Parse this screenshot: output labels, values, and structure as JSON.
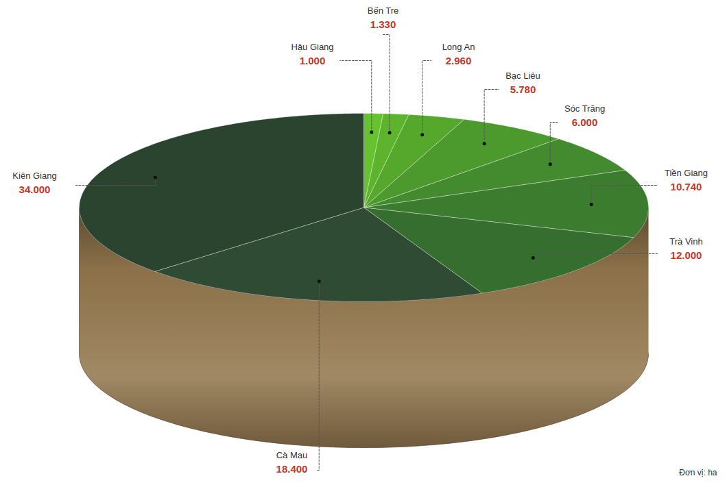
{
  "chart_data": {
    "type": "pie",
    "categories": [
      "Hậu Giang",
      "Bến Tre",
      "Long An",
      "Bạc Liêu",
      "Sóc Trăng",
      "Tiền Giang",
      "Trà Vinh",
      "Cà Mau",
      "Kiên Giang"
    ],
    "values": [
      1000,
      1330,
      2960,
      5780,
      6000,
      10740,
      12000,
      18400,
      34000
    ],
    "value_labels": [
      "1.000",
      "1.330",
      "2.960",
      "5.780",
      "6.000",
      "10.740",
      "12.000",
      "18.400",
      "34.000"
    ],
    "colors": [
      "#66c22e",
      "#5db42c",
      "#55a82c",
      "#4c9a2d",
      "#438b2e",
      "#3b7c2f",
      "#356e2f",
      "#2f4b33",
      "#2b4430"
    ],
    "data_labels": true,
    "annotations": [
      "Đơn vị: ha"
    ]
  }
}
